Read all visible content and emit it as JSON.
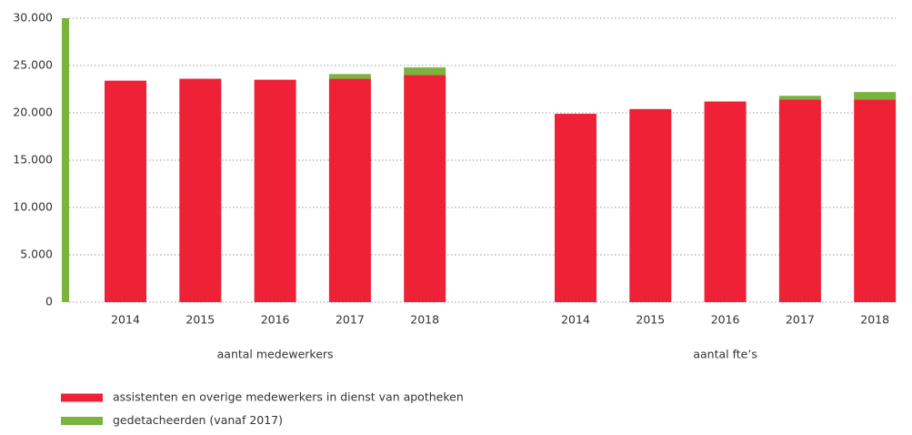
{
  "chart_data": {
    "type": "bar",
    "stacked": true,
    "ylim": [
      0,
      30000
    ],
    "yticks": [
      0,
      {
        "value": 5000,
        "label": "5.000"
      },
      {
        "value": 10000,
        "label": "10.000"
      },
      {
        "value": 15000,
        "label": "15.000"
      },
      {
        "value": 20000,
        "label": "20.000"
      },
      {
        "value": 25000,
        "label": "25.000"
      },
      {
        "value": 30000,
        "label": "30.000"
      }
    ],
    "grid": true,
    "series": [
      {
        "name": "assistenten en overige medewerkers in dienst van apotheken",
        "color": "#ee2136"
      },
      {
        "name": "gedetacheerden (vanaf 2017)",
        "color": "#7ab43d"
      }
    ],
    "groups": [
      {
        "name": "aantal medewerkers",
        "categories": [
          "2014",
          "2015",
          "2016",
          "2017",
          "2018"
        ],
        "series": [
          {
            "values": [
              23400,
              23600,
              23500,
              23600,
              24000
            ]
          },
          {
            "values": [
              null,
              null,
              null,
              500,
              800
            ]
          }
        ]
      },
      {
        "name": "aantal fte’s",
        "categories": [
          "2014",
          "2015",
          "2016",
          "2017",
          "2018"
        ],
        "series": [
          {
            "values": [
              19900,
              20400,
              21200,
              21400,
              21400
            ]
          },
          {
            "values": [
              null,
              null,
              null,
              400,
              800
            ]
          }
        ]
      }
    ]
  }
}
